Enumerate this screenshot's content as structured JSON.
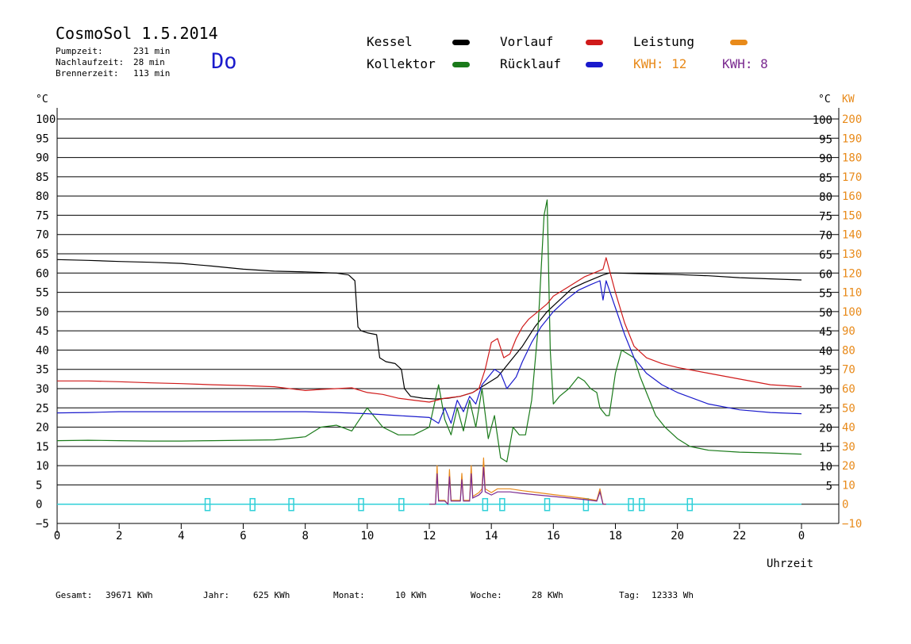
{
  "header": {
    "title": "CosmoSol 1.5.2014",
    "day": "Do",
    "stats": [
      {
        "label": "Pumpzeit:",
        "value": "231 min"
      },
      {
        "label": "Nachlaufzeit:",
        "value": "28 min"
      },
      {
        "label": "Brennerzeit:",
        "value": "113 min"
      }
    ]
  },
  "legend": {
    "kessel": "Kessel",
    "kollektor": "Kollektor",
    "vorlauf": "Vorlauf",
    "ruecklauf": "Rücklauf",
    "leistung": "Leistung",
    "kwh1": "KWH: 12",
    "kwh2": "KWH: 8"
  },
  "colors": {
    "kessel": "#000000",
    "kollektor": "#1a7a1a",
    "vorlauf": "#d01a1a",
    "ruecklauf": "#1a1acc",
    "leistung": "#e88a1a",
    "purple": "#7a2a90",
    "cyan": "#30d0d8",
    "orange_axis": "#e88a1a"
  },
  "footer": {
    "gesamt_label": "Gesamt:",
    "gesamt_value": "39671 KWh",
    "jahr_label": "Jahr:",
    "jahr_value": "625 KWh",
    "monat_label": "Monat:",
    "monat_value": "10 KWh",
    "woche_label": "Woche:",
    "woche_value": "28 KWh",
    "tag_label": "Tag:",
    "tag_value": "12333 Wh"
  },
  "chart_data": {
    "type": "line",
    "xlabel": "Uhrzeit",
    "ylabel_left": "°C",
    "ylabel_right": "°C",
    "ylabel_right2": "KW",
    "xlim": [
      0,
      24
    ],
    "ylim": [
      -5,
      100
    ],
    "x_ticks": [
      "0",
      "2",
      "4",
      "6",
      "8",
      "10",
      "12",
      "14",
      "16",
      "18",
      "20",
      "22",
      "0"
    ],
    "y_ticks_left": [
      "100",
      "95",
      "90",
      "85",
      "80",
      "75",
      "70",
      "65",
      "60",
      "55",
      "50",
      "45",
      "40",
      "35",
      "30",
      "25",
      "20",
      "15",
      "10",
      "5",
      "0",
      "−5"
    ],
    "y_ticks_right": [
      "100",
      "95",
      "90",
      "85",
      "80",
      "75",
      "70",
      "65",
      "60",
      "55",
      "50",
      "45",
      "40",
      "35",
      "30",
      "25",
      "20",
      "15",
      "10",
      "5"
    ],
    "y_ticks_kw": [
      "200",
      "190",
      "180",
      "170",
      "160",
      "150",
      "140",
      "130",
      "120",
      "110",
      "100",
      "90",
      "80",
      "70",
      "60",
      "50",
      "40",
      "30",
      "20",
      "10",
      "0",
      "−10"
    ],
    "grid": true,
    "series": [
      {
        "name": "Kessel",
        "color": "#000000",
        "x": [
          0,
          1,
          2,
          3,
          4,
          5,
          6,
          7,
          8,
          9,
          9.4,
          9.6,
          9.7,
          9.8,
          10,
          10.3,
          10.4,
          10.6,
          10.9,
          11.1,
          11.2,
          11.4,
          11.8,
          12.2,
          12.6,
          13,
          13.4,
          13.8,
          14.2,
          14.6,
          15,
          15.4,
          15.8,
          16.2,
          16.6,
          17,
          17.3,
          17.6,
          17.8,
          18,
          19,
          20,
          21,
          22,
          23,
          24
        ],
        "y": [
          63.5,
          63.3,
          63,
          62.8,
          62.5,
          61.8,
          61,
          60.5,
          60.3,
          60,
          59.5,
          58,
          46,
          45,
          44.5,
          44,
          38,
          37,
          36.5,
          35,
          30,
          28,
          27.5,
          27.3,
          27.5,
          28,
          29,
          31,
          33,
          37,
          41,
          46,
          50,
          53,
          56,
          57.5,
          58.5,
          59.5,
          60,
          60,
          59.8,
          59.6,
          59.3,
          58.8,
          58.5,
          58.2
        ]
      },
      {
        "name": "Kollektor",
        "color": "#1a7a1a",
        "x": [
          0,
          1,
          2,
          3,
          4,
          5,
          6,
          7,
          8,
          8.5,
          9,
          9.5,
          10,
          10.5,
          11,
          11.5,
          12,
          12.3,
          12.5,
          12.7,
          12.9,
          13.1,
          13.3,
          13.5,
          13.7,
          13.9,
          14.1,
          14.3,
          14.5,
          14.7,
          14.9,
          15.1,
          15.3,
          15.5,
          15.6,
          15.7,
          15.8,
          15.9,
          16,
          16.2,
          16.5,
          16.8,
          17,
          17.2,
          17.4,
          17.5,
          17.6,
          17.7,
          17.8,
          18,
          18.2,
          18.4,
          18.6,
          18.8,
          19,
          19.3,
          19.6,
          20,
          20.4,
          21,
          22,
          23,
          24
        ],
        "y": [
          16.5,
          16.6,
          16.5,
          16.4,
          16.4,
          16.5,
          16.6,
          16.7,
          17.5,
          20,
          20.5,
          19,
          25,
          20,
          18,
          18,
          20,
          31,
          22,
          18,
          25,
          19,
          27,
          20,
          30,
          17,
          23,
          12,
          11,
          20,
          18,
          18,
          27,
          45,
          60,
          75,
          79,
          40,
          26,
          28,
          30,
          33,
          32,
          30,
          29,
          25,
          24,
          23,
          23,
          34,
          40,
          39,
          38,
          33,
          29,
          23,
          20,
          17,
          15,
          14,
          13.5,
          13.3,
          13
        ]
      },
      {
        "name": "Vorlauf",
        "color": "#d01a1a",
        "x": [
          0,
          1,
          2,
          3,
          4,
          5,
          6,
          7,
          8,
          8.5,
          9,
          9.5,
          10,
          10.5,
          11,
          11.5,
          12,
          12.5,
          13,
          13.4,
          13.6,
          13.8,
          14,
          14.2,
          14.4,
          14.6,
          14.8,
          15,
          15.2,
          15.5,
          15.8,
          16,
          16.3,
          16.6,
          17,
          17.3,
          17.6,
          17.7,
          18,
          18.3,
          18.6,
          19,
          19.5,
          20,
          21,
          22,
          23,
          24
        ],
        "y": [
          32,
          32,
          31.8,
          31.5,
          31.3,
          31,
          30.8,
          30.5,
          29.5,
          29.8,
          30,
          30.2,
          29,
          28.5,
          27.5,
          27,
          26.5,
          27.5,
          28,
          29,
          30,
          35,
          42,
          43,
          38,
          39,
          43,
          46,
          48,
          50,
          52,
          54,
          55.5,
          57,
          59,
          60,
          61,
          64,
          55,
          47,
          41,
          38,
          36.5,
          35.5,
          34,
          32.5,
          31,
          30.5
        ]
      },
      {
        "name": "Rücklauf",
        "color": "#1a1acc",
        "x": [
          0,
          1,
          2,
          3,
          4,
          5,
          6,
          7,
          8,
          9,
          10,
          11,
          12,
          12.3,
          12.5,
          12.7,
          12.9,
          13.1,
          13.3,
          13.5,
          13.7,
          13.9,
          14.1,
          14.3,
          14.5,
          14.8,
          15,
          15.3,
          15.6,
          16,
          16.4,
          16.8,
          17.2,
          17.5,
          17.6,
          17.7,
          18,
          18.3,
          18.6,
          19,
          19.5,
          20,
          21,
          22,
          23,
          24
        ],
        "y": [
          23.7,
          23.8,
          24,
          24,
          24,
          24,
          24,
          24,
          24,
          23.8,
          23.5,
          23,
          22.5,
          21,
          25,
          21,
          27,
          24,
          28,
          26,
          31,
          33,
          35,
          34,
          30,
          33,
          37,
          42,
          46,
          50,
          53,
          55.5,
          57,
          58,
          53,
          58,
          51,
          44,
          38,
          34,
          31,
          29,
          26,
          24.5,
          23.8,
          23.5
        ]
      },
      {
        "name": "Leistung",
        "color": "#e88a1a",
        "x": [
          12,
          12.2,
          12.25,
          12.3,
          12.5,
          12.6,
          12.65,
          12.7,
          13,
          13.05,
          13.1,
          13.3,
          13.35,
          13.4,
          13.6,
          13.7,
          13.75,
          13.8,
          14,
          14.2,
          14.6,
          15,
          15.5,
          16,
          16.5,
          17,
          17.4,
          17.5,
          17.6,
          17.7
        ],
        "y": [
          0,
          0,
          10,
          1,
          1,
          0,
          9,
          1,
          1,
          8,
          1,
          1,
          10,
          2,
          3,
          4,
          12,
          4,
          3,
          4,
          4,
          3.5,
          3,
          2.5,
          2,
          1.5,
          1,
          4,
          0,
          0
        ]
      }
    ],
    "pump_markers_x": [
      4.85,
      6.3,
      7.55,
      9.8,
      11.1,
      13.8,
      14.35,
      15.8,
      17.05,
      18.5,
      18.85,
      20.4
    ]
  }
}
